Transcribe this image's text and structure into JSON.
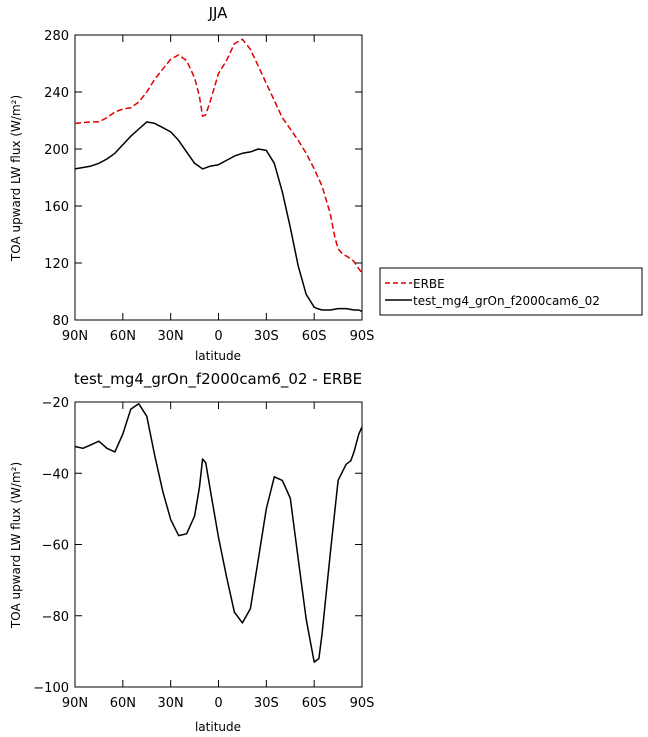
{
  "chart_data": [
    {
      "type": "line",
      "title": "JJA",
      "xlabel": "latitude",
      "ylabel": "TOA upward LW flux (W/m²)",
      "xlim": [
        90,
        -90
      ],
      "ylim": [
        80,
        280
      ],
      "xticks": [
        90,
        60,
        30,
        0,
        -30,
        -60,
        -90
      ],
      "xtick_labels": [
        "90N",
        "60N",
        "30N",
        "0",
        "30S",
        "60S",
        "90S"
      ],
      "yticks": [
        80,
        120,
        160,
        200,
        240,
        280
      ],
      "ytick_labels": [
        "80",
        "120",
        "160",
        "200",
        "240",
        "280"
      ],
      "legend_position": "right",
      "series": [
        {
          "name": "ERBE",
          "color": "#e00000",
          "dash": true,
          "x": [
            90,
            80,
            75,
            70,
            65,
            60,
            55,
            50,
            45,
            40,
            35,
            30,
            25,
            20,
            15,
            12,
            10,
            8,
            5,
            0,
            -5,
            -10,
            -15,
            -20,
            -25,
            -30,
            -35,
            -40,
            -45,
            -50,
            -55,
            -60,
            -65,
            -70,
            -73,
            -75,
            -78,
            -80,
            -83,
            -85,
            -88,
            -90
          ],
          "y": [
            218,
            219,
            219,
            222,
            226,
            228,
            229,
            233,
            240,
            249,
            256,
            263,
            266,
            262,
            250,
            237,
            223,
            224,
            234,
            253,
            262,
            274,
            277,
            270,
            258,
            246,
            234,
            222,
            214,
            206,
            197,
            186,
            174,
            155,
            138,
            130,
            126,
            125,
            123,
            121,
            116,
            113
          ]
        },
        {
          "name": "test_mg4_grOn_f2000cam6_02",
          "color": "#000000",
          "dash": false,
          "x": [
            90,
            85,
            80,
            75,
            70,
            65,
            60,
            55,
            50,
            45,
            40,
            35,
            30,
            25,
            20,
            15,
            10,
            5,
            0,
            -5,
            -10,
            -15,
            -20,
            -25,
            -30,
            -35,
            -40,
            -45,
            -50,
            -55,
            -60,
            -62,
            -65,
            -70,
            -75,
            -80,
            -85,
            -88,
            -90
          ],
          "y": [
            186,
            187,
            188,
            190,
            193,
            197,
            203,
            209,
            214,
            219,
            218,
            215,
            212,
            206,
            198,
            190,
            186,
            188,
            189,
            192,
            195,
            197,
            198,
            200,
            199,
            190,
            170,
            145,
            118,
            98,
            89,
            88,
            87,
            87,
            88,
            88,
            87,
            87,
            86
          ]
        }
      ]
    },
    {
      "type": "line",
      "title": "test_mg4_grOn_f2000cam6_02 - ERBE",
      "xlabel": "latitude",
      "ylabel": "TOA upward LW flux (W/m²)",
      "xlim": [
        90,
        -90
      ],
      "ylim": [
        -100,
        -20
      ],
      "xticks": [
        90,
        60,
        30,
        0,
        -30,
        -60,
        -90
      ],
      "xtick_labels": [
        "90N",
        "60N",
        "30N",
        "0",
        "30S",
        "60S",
        "90S"
      ],
      "yticks": [
        -100,
        -80,
        -60,
        -40,
        -20
      ],
      "ytick_labels": [
        "−100",
        "−80",
        "−60",
        "−40",
        "−20"
      ],
      "series": [
        {
          "name": "",
          "color": "#000000",
          "dash": false,
          "x": [
            90,
            85,
            80,
            75,
            70,
            65,
            60,
            55,
            50,
            45,
            40,
            35,
            30,
            25,
            20,
            15,
            12,
            10,
            8,
            5,
            0,
            -5,
            -10,
            -15,
            -20,
            -25,
            -30,
            -35,
            -40,
            -45,
            -50,
            -55,
            -60,
            -63,
            -65,
            -70,
            -75,
            -80,
            -83,
            -85,
            -88,
            -90
          ],
          "y": [
            -32.5,
            -33,
            -32,
            -31,
            -33,
            -34,
            -29,
            -22,
            -20.5,
            -24,
            -35,
            -45,
            -53,
            -57.5,
            -57,
            -52,
            -44,
            -36,
            -37,
            -45,
            -58,
            -69,
            -79,
            -82,
            -78,
            -64,
            -50,
            -41,
            -42,
            -47,
            -64,
            -81,
            -93,
            -92,
            -85,
            -63,
            -42,
            -37.5,
            -36.5,
            -34,
            -29,
            -27
          ]
        }
      ]
    }
  ]
}
